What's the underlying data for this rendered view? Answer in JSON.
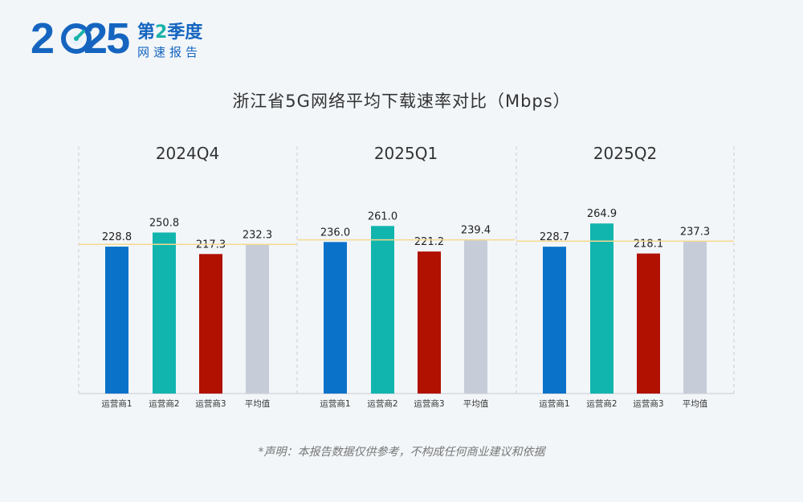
{
  "logo": {
    "year_prefix": "2",
    "year_suffix": "25",
    "label_prefix": "第",
    "label_quarter": "2",
    "label_suffix": "季度",
    "subtitle": "网速报告",
    "dial_icon": "speedometer-icon"
  },
  "disclaimer": "*声明：本报告数据仅供参考，不构成任何商业建议和依据",
  "colors": {
    "operator1": "#0a72c9",
    "operator2": "#12b5ae",
    "operator3": "#b11100",
    "average": "#c6cdd8",
    "avg_line": "#f5d98f",
    "brand": "#1565c0"
  },
  "chart_data": {
    "type": "bar",
    "title": "浙江省5G网络平均下载速率对比（Mbps）",
    "categories": [
      "运营商1",
      "运营商2",
      "运营商3",
      "平均值"
    ],
    "groups": [
      {
        "name": "2024Q4",
        "values": [
          228.8,
          250.8,
          217.3,
          232.3
        ],
        "value_labels": [
          "228.8",
          "250.8",
          "217.3",
          "232.3"
        ]
      },
      {
        "name": "2025Q1",
        "values": [
          236.0,
          261.0,
          221.2,
          239.4
        ],
        "value_labels": [
          "236.0",
          "261.0",
          "221.2",
          "239.4"
        ]
      },
      {
        "name": "2025Q2",
        "values": [
          228.7,
          264.9,
          218.1,
          237.3
        ],
        "value_labels": [
          "228.7",
          "264.9",
          "218.1",
          "237.3"
        ]
      }
    ],
    "ylim": [
      0,
      300
    ],
    "average_line": true,
    "grid": false,
    "legend": "none"
  }
}
